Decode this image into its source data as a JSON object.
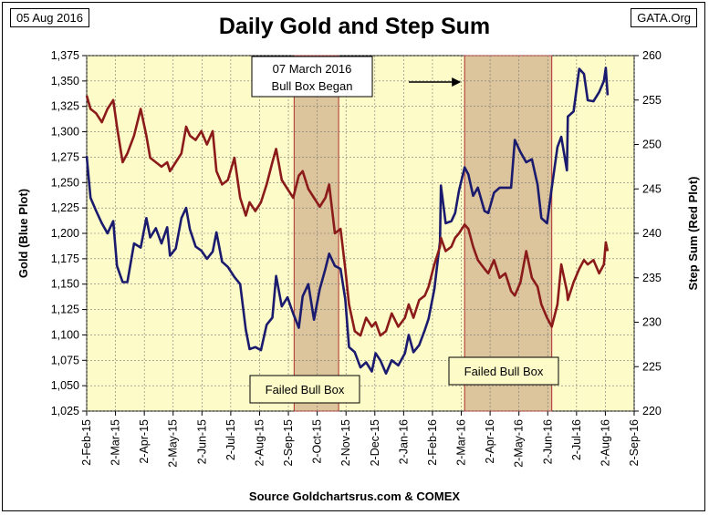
{
  "header": {
    "date": "05 Aug 2016",
    "source_top": "GATA.Org",
    "title": "Daily Gold and Step Sum",
    "source_bottom": "Source Goldchartsrus.com & COMEX"
  },
  "chart_data": {
    "type": "line",
    "title": "Daily Gold and Step Sum",
    "xlabel": "",
    "ylabel": "Gold   (Blue Plot)",
    "y2label": "Step Sum   (Red Plot)",
    "x_range": [
      "2015-02-02",
      "2016-09-02"
    ],
    "ylim": [
      1025,
      1375
    ],
    "y2lim": [
      220,
      260
    ],
    "grid": true,
    "x_tick_labels": [
      "2-Feb-15",
      "2-Mar-15",
      "2-Apr-15",
      "2-May-15",
      "2-Jun-15",
      "2-Jul-15",
      "2-Aug-15",
      "2-Sep-15",
      "2-Oct-15",
      "2-Nov-15",
      "2-Dec-15",
      "2-Jan-16",
      "2-Feb-16",
      "2-Mar-16",
      "2-Apr-16",
      "2-May-16",
      "2-Jun-16",
      "2-Jul-16",
      "2-Aug-16",
      "2-Sep-16"
    ],
    "y_tick_labels": [
      "1,025",
      "1,050",
      "1,075",
      "1,100",
      "1,125",
      "1,150",
      "1,175",
      "1,200",
      "1,225",
      "1,250",
      "1,275",
      "1,300",
      "1,325",
      "1,350",
      "1,375"
    ],
    "y2_tick_labels": [
      "220",
      "225",
      "230",
      "235",
      "240",
      "245",
      "250",
      "255",
      "260"
    ],
    "series": [
      {
        "name": "Gold",
        "axis": "left",
        "color": "#1a1a6e",
        "points": [
          [
            "2015-02-02",
            1276
          ],
          [
            "2015-02-06",
            1235
          ],
          [
            "2015-02-12",
            1222
          ],
          [
            "2015-02-18",
            1210
          ],
          [
            "2015-02-24",
            1200
          ],
          [
            "2015-03-02",
            1212
          ],
          [
            "2015-03-06",
            1168
          ],
          [
            "2015-03-12",
            1152
          ],
          [
            "2015-03-17",
            1152
          ],
          [
            "2015-03-24",
            1190
          ],
          [
            "2015-03-31",
            1186
          ],
          [
            "2015-04-06",
            1215
          ],
          [
            "2015-04-10",
            1196
          ],
          [
            "2015-04-16",
            1205
          ],
          [
            "2015-04-22",
            1190
          ],
          [
            "2015-04-28",
            1206
          ],
          [
            "2015-05-01",
            1178
          ],
          [
            "2015-05-07",
            1185
          ],
          [
            "2015-05-13",
            1215
          ],
          [
            "2015-05-18",
            1225
          ],
          [
            "2015-05-22",
            1204
          ],
          [
            "2015-05-28",
            1187
          ],
          [
            "2015-06-03",
            1183
          ],
          [
            "2015-06-09",
            1175
          ],
          [
            "2015-06-15",
            1182
          ],
          [
            "2015-06-19",
            1201
          ],
          [
            "2015-06-25",
            1172
          ],
          [
            "2015-07-01",
            1167
          ],
          [
            "2015-07-08",
            1157
          ],
          [
            "2015-07-14",
            1150
          ],
          [
            "2015-07-20",
            1105
          ],
          [
            "2015-07-24",
            1086
          ],
          [
            "2015-07-30",
            1088
          ],
          [
            "2015-08-05",
            1085
          ],
          [
            "2015-08-11",
            1110
          ],
          [
            "2015-08-17",
            1117
          ],
          [
            "2015-08-21",
            1158
          ],
          [
            "2015-08-27",
            1128
          ],
          [
            "2015-09-02",
            1137
          ],
          [
            "2015-09-08",
            1121
          ],
          [
            "2015-09-14",
            1107
          ],
          [
            "2015-09-18",
            1138
          ],
          [
            "2015-09-24",
            1150
          ],
          [
            "2015-09-30",
            1115
          ],
          [
            "2015-10-06",
            1145
          ],
          [
            "2015-10-12",
            1165
          ],
          [
            "2015-10-16",
            1180
          ],
          [
            "2015-10-22",
            1168
          ],
          [
            "2015-10-28",
            1165
          ],
          [
            "2015-11-02",
            1135
          ],
          [
            "2015-11-06",
            1088
          ],
          [
            "2015-11-12",
            1083
          ],
          [
            "2015-11-18",
            1068
          ],
          [
            "2015-11-24",
            1073
          ],
          [
            "2015-11-30",
            1064
          ],
          [
            "2015-12-04",
            1082
          ],
          [
            "2015-12-09",
            1075
          ],
          [
            "2015-12-15",
            1062
          ],
          [
            "2015-12-21",
            1075
          ],
          [
            "2015-12-28",
            1070
          ],
          [
            "2016-01-04",
            1082
          ],
          [
            "2016-01-08",
            1100
          ],
          [
            "2016-01-13",
            1083
          ],
          [
            "2016-01-19",
            1090
          ],
          [
            "2016-01-25",
            1105
          ],
          [
            "2016-01-29",
            1116
          ],
          [
            "2016-02-04",
            1145
          ],
          [
            "2016-02-10",
            1192
          ],
          [
            "2016-02-11",
            1247
          ],
          [
            "2016-02-16",
            1210
          ],
          [
            "2016-02-22",
            1212
          ],
          [
            "2016-02-26",
            1220
          ],
          [
            "2016-03-01",
            1242
          ],
          [
            "2016-03-07",
            1265
          ],
          [
            "2016-03-11",
            1258
          ],
          [
            "2016-03-16",
            1237
          ],
          [
            "2016-03-21",
            1245
          ],
          [
            "2016-03-28",
            1222
          ],
          [
            "2016-04-01",
            1220
          ],
          [
            "2016-04-07",
            1240
          ],
          [
            "2016-04-13",
            1245
          ],
          [
            "2016-04-19",
            1245
          ],
          [
            "2016-04-25",
            1245
          ],
          [
            "2016-04-29",
            1292
          ],
          [
            "2016-05-05",
            1280
          ],
          [
            "2016-05-11",
            1270
          ],
          [
            "2016-05-17",
            1273
          ],
          [
            "2016-05-23",
            1248
          ],
          [
            "2016-05-27",
            1215
          ],
          [
            "2016-06-02",
            1210
          ],
          [
            "2016-06-07",
            1245
          ],
          [
            "2016-06-13",
            1285
          ],
          [
            "2016-06-17",
            1295
          ],
          [
            "2016-06-23",
            1262
          ],
          [
            "2016-06-24",
            1315
          ],
          [
            "2016-06-30",
            1320
          ],
          [
            "2016-07-06",
            1362
          ],
          [
            "2016-07-11",
            1357
          ],
          [
            "2016-07-15",
            1331
          ],
          [
            "2016-07-21",
            1330
          ],
          [
            "2016-07-27",
            1339
          ],
          [
            "2016-08-01",
            1350
          ],
          [
            "2016-08-03",
            1363
          ],
          [
            "2016-08-05",
            1336
          ]
        ]
      },
      {
        "name": "Step Sum",
        "axis": "right",
        "color": "#8b1a1a",
        "points": [
          [
            "2015-02-02",
            255.5
          ],
          [
            "2015-02-06",
            254
          ],
          [
            "2015-02-12",
            253.5
          ],
          [
            "2015-02-18",
            252.5
          ],
          [
            "2015-02-24",
            254
          ],
          [
            "2015-03-02",
            255
          ],
          [
            "2015-03-06",
            252
          ],
          [
            "2015-03-12",
            248
          ],
          [
            "2015-03-17",
            249
          ],
          [
            "2015-03-24",
            251
          ],
          [
            "2015-03-31",
            254
          ],
          [
            "2015-04-06",
            251
          ],
          [
            "2015-04-10",
            248.5
          ],
          [
            "2015-04-16",
            248
          ],
          [
            "2015-04-22",
            247.5
          ],
          [
            "2015-04-28",
            248
          ],
          [
            "2015-05-01",
            247
          ],
          [
            "2015-05-07",
            248
          ],
          [
            "2015-05-13",
            249
          ],
          [
            "2015-05-18",
            252
          ],
          [
            "2015-05-22",
            251
          ],
          [
            "2015-05-28",
            250.5
          ],
          [
            "2015-06-03",
            251.5
          ],
          [
            "2015-06-09",
            250
          ],
          [
            "2015-06-15",
            251.5
          ],
          [
            "2015-06-19",
            247
          ],
          [
            "2015-06-25",
            245.5
          ],
          [
            "2015-07-01",
            246
          ],
          [
            "2015-07-08",
            248.5
          ],
          [
            "2015-07-14",
            244
          ],
          [
            "2015-07-20",
            242
          ],
          [
            "2015-07-24",
            243.5
          ],
          [
            "2015-07-30",
            242.5
          ],
          [
            "2015-08-05",
            243.5
          ],
          [
            "2015-08-11",
            245.5
          ],
          [
            "2015-08-17",
            248
          ],
          [
            "2015-08-21",
            249.5
          ],
          [
            "2015-08-27",
            246
          ],
          [
            "2015-09-02",
            245
          ],
          [
            "2015-09-08",
            244
          ],
          [
            "2015-09-14",
            246.5
          ],
          [
            "2015-09-18",
            247
          ],
          [
            "2015-09-24",
            245
          ],
          [
            "2015-09-30",
            244
          ],
          [
            "2015-10-06",
            243
          ],
          [
            "2015-10-12",
            244
          ],
          [
            "2015-10-16",
            245.5
          ],
          [
            "2015-10-22",
            240
          ],
          [
            "2015-10-28",
            240.5
          ],
          [
            "2015-11-02",
            236
          ],
          [
            "2015-11-06",
            232
          ],
          [
            "2015-11-12",
            229
          ],
          [
            "2015-11-18",
            228.5
          ],
          [
            "2015-11-24",
            230.5
          ],
          [
            "2015-11-30",
            229.5
          ],
          [
            "2015-12-04",
            230
          ],
          [
            "2015-12-09",
            228.5
          ],
          [
            "2015-12-15",
            229
          ],
          [
            "2015-12-21",
            231
          ],
          [
            "2015-12-28",
            229.5
          ],
          [
            "2016-01-04",
            230.5
          ],
          [
            "2016-01-08",
            232
          ],
          [
            "2016-01-13",
            230.5
          ],
          [
            "2016-01-19",
            232.5
          ],
          [
            "2016-01-25",
            233
          ],
          [
            "2016-01-29",
            234
          ],
          [
            "2016-02-04",
            236.5
          ],
          [
            "2016-02-10",
            238.5
          ],
          [
            "2016-02-11",
            239.5
          ],
          [
            "2016-02-16",
            238
          ],
          [
            "2016-02-22",
            238.5
          ],
          [
            "2016-02-26",
            239.5
          ],
          [
            "2016-03-01",
            240
          ],
          [
            "2016-03-07",
            241
          ],
          [
            "2016-03-11",
            240.5
          ],
          [
            "2016-03-16",
            238.5
          ],
          [
            "2016-03-21",
            237
          ],
          [
            "2016-03-28",
            236
          ],
          [
            "2016-04-01",
            235.5
          ],
          [
            "2016-04-07",
            237
          ],
          [
            "2016-04-13",
            235
          ],
          [
            "2016-04-19",
            235.5
          ],
          [
            "2016-04-25",
            233.5
          ],
          [
            "2016-04-29",
            233
          ],
          [
            "2016-05-05",
            234.5
          ],
          [
            "2016-05-11",
            238
          ],
          [
            "2016-05-17",
            235
          ],
          [
            "2016-05-23",
            234
          ],
          [
            "2016-05-27",
            232
          ],
          [
            "2016-06-02",
            230.5
          ],
          [
            "2016-06-07",
            229.5
          ],
          [
            "2016-06-13",
            232
          ],
          [
            "2016-06-17",
            236.5
          ],
          [
            "2016-06-23",
            233.5
          ],
          [
            "2016-06-24",
            232.5
          ],
          [
            "2016-06-30",
            234.5
          ],
          [
            "2016-07-06",
            236
          ],
          [
            "2016-07-11",
            237
          ],
          [
            "2016-07-15",
            236.5
          ],
          [
            "2016-07-21",
            237
          ],
          [
            "2016-07-27",
            235.5
          ],
          [
            "2016-08-01",
            236.5
          ],
          [
            "2016-08-03",
            239
          ],
          [
            "2016-08-05",
            238
          ]
        ]
      }
    ],
    "shaded_regions": [
      {
        "start": "2015-09-09",
        "end": "2015-10-26",
        "label": "Failed Bull Box"
      },
      {
        "start": "2016-03-07",
        "end": "2016-06-07",
        "label": "Failed Bull Box"
      }
    ],
    "annotations": [
      {
        "text_line1": "07 March 2016",
        "text_line2": "Bull Box Began",
        "arrow_to": "2016-03-07"
      }
    ]
  }
}
